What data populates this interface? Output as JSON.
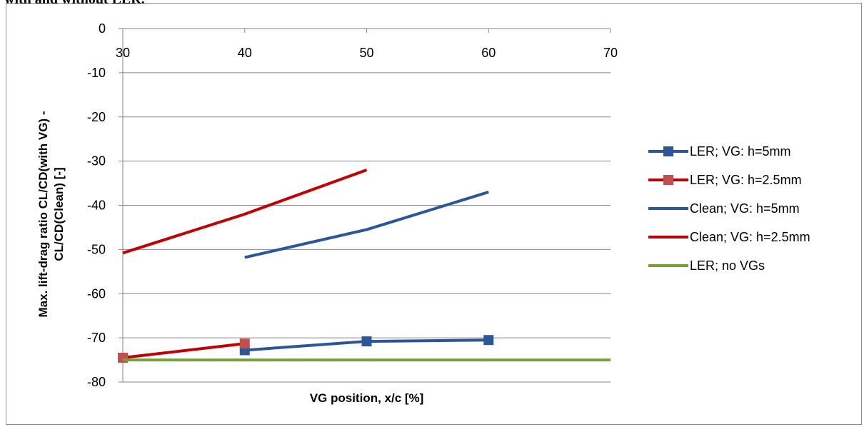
{
  "caption": "with and without LER.",
  "chart_data": {
    "type": "line",
    "xlabel": "VG position, x/c [%]",
    "ylabel_lines": [
      "Max.  lift-drag ratio CL/CD(with VG) -",
      "CL/CD(Clean) [-]"
    ],
    "xlim": [
      30,
      70
    ],
    "ylim": [
      -80,
      0
    ],
    "xticks": [
      30,
      40,
      50,
      60,
      70
    ],
    "yticks": [
      0,
      -10,
      -20,
      -30,
      -40,
      -50,
      -60,
      -70,
      -80
    ],
    "grid": "horizontal",
    "legend_position": "right",
    "series": [
      {
        "name": "LER; VG: h=5mm",
        "color": "#2c5697",
        "marker": "square",
        "x": [
          40,
          50,
          60
        ],
        "y": [
          -72.8,
          -70.8,
          -70.5
        ]
      },
      {
        "name": "LER; VG: h=2.5mm",
        "color": "#c0504d",
        "line_color": "#c00000",
        "marker": "square",
        "x": [
          30,
          40
        ],
        "y": [
          -74.5,
          -71.3
        ]
      },
      {
        "name": "Clean; VG: h=5mm",
        "color": "#2c5697",
        "marker": "none",
        "x": [
          40,
          50,
          60
        ],
        "y": [
          -51.8,
          -45.5,
          -37
        ]
      },
      {
        "name": "Clean; VG: h=2.5mm",
        "color": "#c00000",
        "marker": "none",
        "x": [
          30,
          40,
          50
        ],
        "y": [
          -50.8,
          -42,
          -32
        ]
      },
      {
        "name": "LER; no VGs",
        "color": "#77a03c",
        "marker": "none",
        "x": [
          30,
          70
        ],
        "y": [
          -75,
          -75
        ]
      }
    ]
  }
}
